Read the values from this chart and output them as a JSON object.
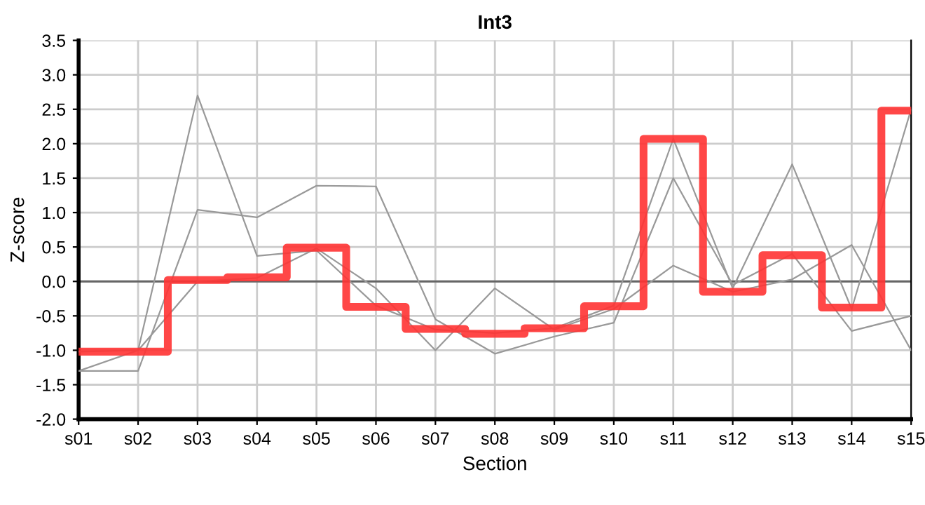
{
  "chart_data": {
    "type": "line",
    "title": "Int3",
    "xlabel": "Section",
    "ylabel": "Z-score",
    "categories": [
      "s01",
      "s02",
      "s03",
      "s04",
      "s05",
      "s06",
      "s07",
      "s08",
      "s09",
      "s10",
      "s11",
      "s12",
      "s13",
      "s14",
      "s15"
    ],
    "series": [
      {
        "color": "#999999",
        "values": [
          -1.02,
          -1.0,
          2.7,
          0.37,
          0.45,
          -0.35,
          -0.7,
          -0.75,
          -0.68,
          -0.35,
          2.07,
          -0.1,
          1.7,
          -0.4,
          2.5
        ]
      },
      {
        "color": "#999999",
        "values": [
          -1.3,
          -1.3,
          1.04,
          0.93,
          1.39,
          1.38,
          -0.55,
          -1.05,
          -0.8,
          -0.6,
          1.5,
          -0.05,
          0.4,
          -0.72,
          -0.5
        ]
      },
      {
        "color": "#999999",
        "values": [
          -1.3,
          -1.0,
          0.0,
          0.05,
          0.48,
          -0.1,
          -1.0,
          -0.1,
          -0.7,
          -0.4,
          0.23,
          -0.15,
          0.03,
          0.53,
          -1.0
        ]
      },
      {
        "type": "step",
        "color": "#ff3333",
        "values": [
          -1.02,
          -1.02,
          0.02,
          0.06,
          0.49,
          -0.37,
          -0.69,
          -0.76,
          -0.68,
          -0.36,
          2.07,
          -0.15,
          0.38,
          -0.38,
          2.48
        ]
      }
    ],
    "ylim": [
      -2.0,
      3.5
    ],
    "yticks": [
      {
        "value": -2.0,
        "label": "-2.0"
      },
      {
        "value": -1.5,
        "label": "-1.5"
      },
      {
        "value": -1.0,
        "label": "-1.0"
      },
      {
        "value": -0.5,
        "label": "-0.5"
      },
      {
        "value": 0.0,
        "label": "0.0"
      },
      {
        "value": 0.5,
        "label": "0.5"
      },
      {
        "value": 1.0,
        "label": "1.0"
      },
      {
        "value": 1.5,
        "label": "1.5"
      },
      {
        "value": 2.0,
        "label": "2.0"
      },
      {
        "value": 2.5,
        "label": "2.5"
      },
      {
        "value": 3.0,
        "label": "3.0"
      },
      {
        "value": 3.5,
        "label": "3.5"
      }
    ],
    "ref_lines": [
      {
        "axis": "y",
        "value": 0,
        "color": "#666666"
      }
    ],
    "grid": true
  }
}
